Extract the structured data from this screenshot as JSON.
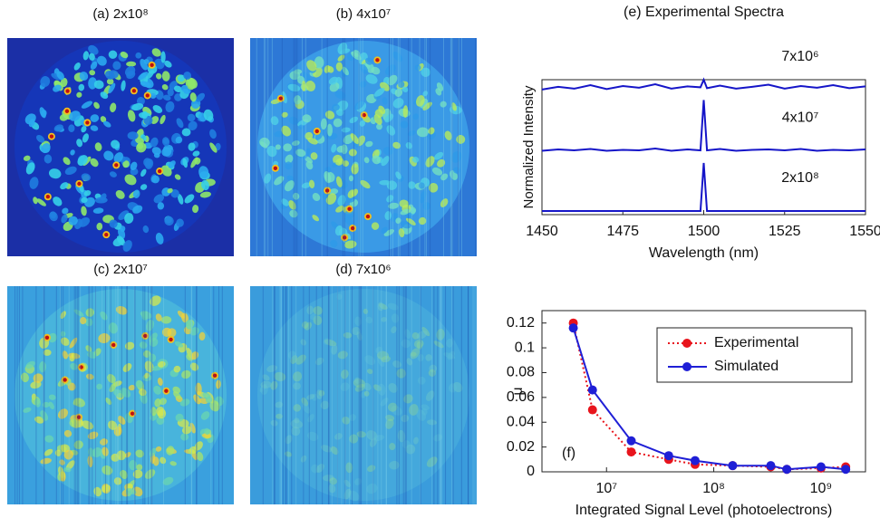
{
  "images": [
    {
      "title": "(a) 2x10⁸"
    },
    {
      "title": "(b) 4x10⁷"
    },
    {
      "title": "(c) 2x10⁷"
    },
    {
      "title": "(d) 7x10⁶"
    }
  ],
  "chart_data": [
    {
      "type": "line",
      "title": "(e) Experimental Spectra",
      "x_label": "Wavelength (nm)",
      "y_label": "Normalized Intensity",
      "x": [
        1450,
        1455,
        1460,
        1465,
        1470,
        1475,
        1480,
        1485,
        1490,
        1495,
        1499,
        1500,
        1501,
        1505,
        1510,
        1515,
        1520,
        1525,
        1530,
        1535,
        1540,
        1545,
        1550
      ],
      "series": [
        {
          "name": "7x10⁶",
          "color": "#1515c8",
          "values": [
            2.78,
            2.84,
            2.8,
            2.88,
            2.79,
            2.86,
            2.82,
            2.9,
            2.8,
            2.85,
            2.83,
            3.0,
            2.81,
            2.87,
            2.8,
            2.84,
            2.89,
            2.8,
            2.86,
            2.82,
            2.88,
            2.81,
            2.85
          ]
        },
        {
          "name": "4x10⁷",
          "color": "#1515c8",
          "values": [
            1.42,
            1.45,
            1.43,
            1.46,
            1.42,
            1.44,
            1.43,
            1.47,
            1.42,
            1.45,
            1.43,
            2.55,
            1.43,
            1.46,
            1.42,
            1.44,
            1.45,
            1.43,
            1.46,
            1.42,
            1.44,
            1.43,
            1.45
          ]
        },
        {
          "name": "2x10⁸",
          "color": "#1515c8",
          "values": [
            0.08,
            0.08,
            0.08,
            0.08,
            0.08,
            0.08,
            0.08,
            0.08,
            0.08,
            0.08,
            0.08,
            1.15,
            0.08,
            0.08,
            0.08,
            0.08,
            0.08,
            0.08,
            0.08,
            0.08,
            0.08,
            0.08,
            0.08
          ]
        }
      ],
      "xlim": [
        1450,
        1550
      ],
      "xticks": [
        1450,
        1475,
        1500,
        1525,
        1550
      ],
      "ylim": [
        0,
        3
      ],
      "series_labels": true
    },
    {
      "type": "line",
      "x_label": "Integrated Signal Level (photoelectrons)",
      "y_label": "μ",
      "annotation": "(f)",
      "x": [
        4900000,
        7400000,
        17000000,
        38000000,
        67000000,
        150000000,
        340000000,
        480000000,
        1000000000,
        1700000000
      ],
      "series": [
        {
          "name": "Experimental",
          "color": "#e8141c",
          "dash": "dotted",
          "values": [
            0.12,
            0.05,
            0.016,
            0.01,
            0.006,
            0.005,
            0.004,
            0.002,
            0.003,
            0.004
          ]
        },
        {
          "name": "Simulated",
          "color": "#1f1fd6",
          "dash": "solid",
          "values": [
            0.116,
            0.066,
            0.025,
            0.013,
            0.009,
            0.005,
            0.005,
            0.002,
            0.004,
            0.002
          ]
        }
      ],
      "xscale": "log",
      "xlim": [
        2500000,
        2600000000
      ],
      "xticks": [
        {
          "value": 10000000,
          "label": "10⁷"
        },
        {
          "value": 100000000,
          "label": "10⁸"
        },
        {
          "value": 1000000000,
          "label": "10⁹"
        }
      ],
      "ylim": [
        0,
        0.13
      ],
      "yticks": [
        0,
        0.02,
        0.04,
        0.06,
        0.08,
        0.1,
        0.12
      ],
      "markers": true,
      "legend": "upper right"
    }
  ]
}
